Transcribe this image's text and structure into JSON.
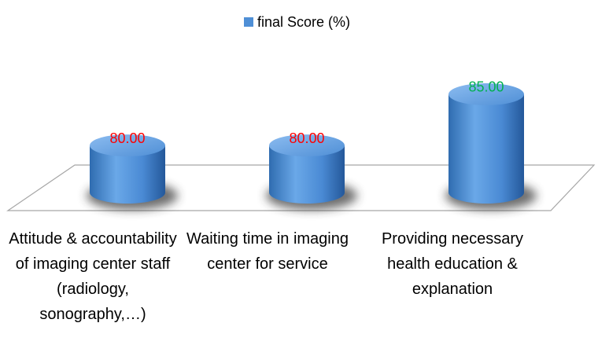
{
  "chart_data": {
    "type": "cylinder",
    "legend": "final Score (%)",
    "categories": [
      "Attitude & accountability of imaging center staff (radiology, sonography,…)",
      "Waiting time in imaging center for service",
      "Providing necessary health education & explanation"
    ],
    "series": [
      {
        "name": "final Score (%)",
        "color": "#4f8fd6",
        "values": [
          80,
          80,
          85
        ],
        "value_labels": [
          "80.00",
          "80.00",
          "85.00"
        ],
        "value_label_colors": [
          "#ff0000",
          "#ff0000",
          "#00b050"
        ]
      }
    ],
    "ylim": [
      75.4,
      89.6
    ]
  }
}
